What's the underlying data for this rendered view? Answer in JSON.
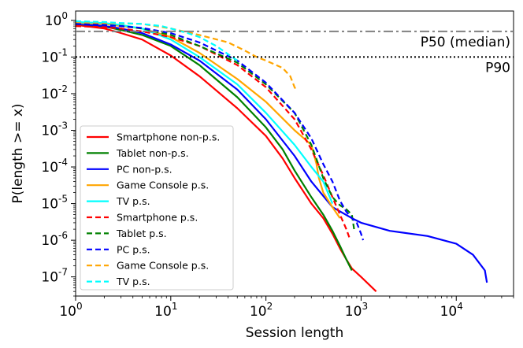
{
  "chart_data": {
    "type": "line",
    "title": "",
    "xlabel": "Session length",
    "ylabel": "P(length >= x)",
    "xscale": "log",
    "yscale": "log",
    "xlim": [
      1,
      40000
    ],
    "ylim": [
      3e-08,
      1.8
    ],
    "grid": false,
    "legend_position": "lower-left",
    "x_ticks": [
      {
        "base": "10",
        "exp": "0",
        "value": 1
      },
      {
        "base": "10",
        "exp": "1",
        "value": 10
      },
      {
        "base": "10",
        "exp": "2",
        "value": 100
      },
      {
        "base": "10",
        "exp": "3",
        "value": 1000
      },
      {
        "base": "10",
        "exp": "4",
        "value": 10000
      }
    ],
    "y_ticks": [
      {
        "base": "10",
        "exp": "0",
        "value": 1
      },
      {
        "base": "10",
        "exp": "-1",
        "value": 0.1
      },
      {
        "base": "10",
        "exp": "-2",
        "value": 0.01
      },
      {
        "base": "10",
        "exp": "-3",
        "value": 0.001
      },
      {
        "base": "10",
        "exp": "-4",
        "value": 0.0001
      },
      {
        "base": "10",
        "exp": "-5",
        "value": 1e-05
      },
      {
        "base": "10",
        "exp": "-6",
        "value": 1e-06
      },
      {
        "base": "10",
        "exp": "-7",
        "value": 1e-07
      }
    ],
    "reference_lines": [
      {
        "label": "P50 (median)",
        "y": 0.5,
        "style": "dashdot",
        "color": "#808080"
      },
      {
        "label": "P90",
        "y": 0.1,
        "style": "dotted",
        "color": "#000000"
      }
    ],
    "series": [
      {
        "name": "Smartphone non-p.s.",
        "color": "#ff0000",
        "dash": "solid",
        "points": [
          [
            1,
            0.75
          ],
          [
            2,
            0.6
          ],
          [
            3,
            0.45
          ],
          [
            5,
            0.3
          ],
          [
            10,
            0.11
          ],
          [
            20,
            0.03
          ],
          [
            50,
            0.004
          ],
          [
            100,
            0.0007
          ],
          [
            150,
            0.00017
          ],
          [
            200,
            5e-05
          ],
          [
            300,
            1e-05
          ],
          [
            400,
            4e-06
          ],
          [
            500,
            1.5e-06
          ],
          [
            600,
            6e-07
          ],
          [
            700,
            3e-07
          ],
          [
            800,
            1.7e-07
          ],
          [
            1000,
            1e-07
          ],
          [
            1440,
            4e-08
          ]
        ]
      },
      {
        "name": "Tablet non-p.s.",
        "color": "#008000",
        "dash": "solid",
        "points": [
          [
            1,
            0.8
          ],
          [
            2,
            0.68
          ],
          [
            3,
            0.55
          ],
          [
            5,
            0.4
          ],
          [
            10,
            0.2
          ],
          [
            20,
            0.06
          ],
          [
            50,
            0.008
          ],
          [
            100,
            0.0012
          ],
          [
            150,
            0.0003
          ],
          [
            200,
            8e-05
          ],
          [
            300,
            1.5e-05
          ],
          [
            400,
            5e-06
          ],
          [
            500,
            1.8e-06
          ],
          [
            600,
            7e-07
          ],
          [
            700,
            3e-07
          ],
          [
            800,
            1.5e-07
          ]
        ]
      },
      {
        "name": "PC non-p.s.",
        "color": "#0000ff",
        "dash": "solid",
        "points": [
          [
            1,
            0.8
          ],
          [
            2,
            0.7
          ],
          [
            3,
            0.6
          ],
          [
            5,
            0.45
          ],
          [
            10,
            0.22
          ],
          [
            20,
            0.08
          ],
          [
            50,
            0.013
          ],
          [
            100,
            0.002
          ],
          [
            200,
            0.0002
          ],
          [
            300,
            4e-05
          ],
          [
            500,
            8e-06
          ],
          [
            800,
            4e-06
          ],
          [
            1000,
            3e-06
          ],
          [
            2000,
            1.8e-06
          ],
          [
            5000,
            1.3e-06
          ],
          [
            10000,
            8e-07
          ],
          [
            15000,
            4e-07
          ],
          [
            20000,
            1.5e-07
          ],
          [
            21000,
            7e-08
          ]
        ]
      },
      {
        "name": "Game Console p.s.",
        "color": "#ffa500",
        "dash": "solid",
        "points": [
          [
            1,
            0.85
          ],
          [
            2,
            0.8
          ],
          [
            5,
            0.6
          ],
          [
            10,
            0.35
          ],
          [
            20,
            0.13
          ],
          [
            50,
            0.025
          ],
          [
            100,
            0.006
          ],
          [
            200,
            0.001
          ],
          [
            300,
            0.0004
          ],
          [
            340,
            0.00012
          ],
          [
            360,
            5e-05
          ],
          [
            400,
            2e-05
          ],
          [
            500,
            8e-06
          ],
          [
            600,
            4e-06
          ]
        ]
      },
      {
        "name": "TV p.s.",
        "color": "#00ffff",
        "dash": "solid",
        "points": [
          [
            1,
            0.9
          ],
          [
            2,
            0.85
          ],
          [
            3,
            0.75
          ],
          [
            5,
            0.6
          ],
          [
            10,
            0.3
          ],
          [
            20,
            0.1
          ],
          [
            50,
            0.018
          ],
          [
            100,
            0.003
          ],
          [
            200,
            0.0004
          ],
          [
            300,
            0.0001
          ],
          [
            400,
            4e-05
          ],
          [
            500,
            1e-05
          ]
        ]
      },
      {
        "name": "Smartphone p.s.",
        "color": "#ff0000",
        "dash": "dashed",
        "points": [
          [
            1,
            0.7
          ],
          [
            2,
            0.65
          ],
          [
            3,
            0.6
          ],
          [
            5,
            0.5
          ],
          [
            10,
            0.35
          ],
          [
            20,
            0.2
          ],
          [
            50,
            0.06
          ],
          [
            100,
            0.015
          ],
          [
            200,
            0.002
          ],
          [
            300,
            0.0003
          ],
          [
            400,
            6e-05
          ],
          [
            500,
            1.5e-05
          ],
          [
            600,
            5e-06
          ],
          [
            700,
            2e-06
          ],
          [
            750,
            1.2e-06
          ]
        ]
      },
      {
        "name": "Tablet p.s.",
        "color": "#008000",
        "dash": "dashed",
        "points": [
          [
            1,
            0.8
          ],
          [
            2,
            0.75
          ],
          [
            3,
            0.7
          ],
          [
            5,
            0.6
          ],
          [
            10,
            0.4
          ],
          [
            20,
            0.2
          ],
          [
            50,
            0.07
          ],
          [
            100,
            0.018
          ],
          [
            200,
            0.003
          ],
          [
            300,
            0.0004
          ],
          [
            400,
            5e-05
          ],
          [
            500,
            1.5e-05
          ],
          [
            600,
            9e-06
          ],
          [
            700,
            7e-06
          ],
          [
            800,
            5e-06
          ],
          [
            850,
            1.8e-06
          ]
        ]
      },
      {
        "name": "PC p.s.",
        "color": "#0000ff",
        "dash": "dashed",
        "points": [
          [
            1,
            0.8
          ],
          [
            2,
            0.75
          ],
          [
            3,
            0.7
          ],
          [
            5,
            0.62
          ],
          [
            10,
            0.45
          ],
          [
            20,
            0.25
          ],
          [
            50,
            0.08
          ],
          [
            100,
            0.02
          ],
          [
            200,
            0.003
          ],
          [
            300,
            0.0006
          ],
          [
            400,
            0.00012
          ],
          [
            500,
            4e-05
          ],
          [
            600,
            1.2e-05
          ],
          [
            700,
            6e-06
          ],
          [
            800,
            4e-06
          ],
          [
            900,
            3e-06
          ],
          [
            1000,
            1.5e-06
          ],
          [
            1050,
            1e-06
          ]
        ]
      },
      {
        "name": "Game Console p.s.",
        "color": "#ffa500",
        "dash": "dashed",
        "points": [
          [
            1,
            0.9
          ],
          [
            2,
            0.85
          ],
          [
            5,
            0.8
          ],
          [
            10,
            0.6
          ],
          [
            20,
            0.4
          ],
          [
            40,
            0.25
          ],
          [
            60,
            0.15
          ],
          [
            80,
            0.1
          ],
          [
            100,
            0.08
          ],
          [
            150,
            0.05
          ],
          [
            180,
            0.03
          ],
          [
            200,
            0.015
          ],
          [
            210,
            0.012
          ]
        ]
      },
      {
        "name": "TV p.s.",
        "color": "#00ffff",
        "dash": "dashed",
        "points": [
          [
            1,
            0.95
          ],
          [
            2,
            0.9
          ],
          [
            3,
            0.85
          ],
          [
            5,
            0.8
          ],
          [
            8,
            0.7
          ],
          [
            10,
            0.6
          ],
          [
            15,
            0.45
          ],
          [
            20,
            0.35
          ],
          [
            30,
            0.2
          ],
          [
            50,
            0.08
          ]
        ]
      }
    ]
  }
}
